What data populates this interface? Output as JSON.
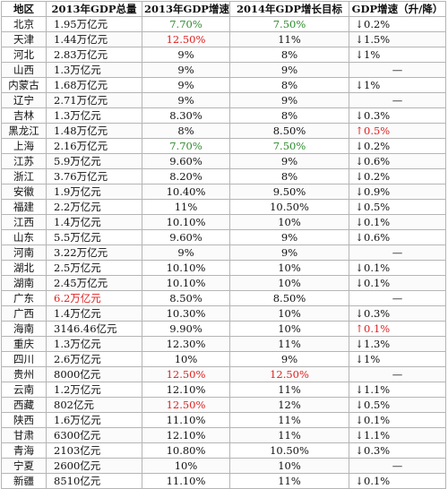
{
  "headers": [
    "地区",
    "2013年GDP总量",
    "2013年GDP增速",
    "2014年GDP增长目标",
    "GDP增速（升/降）"
  ],
  "colors": {
    "green": "#2e8b2e",
    "red": "#e02020",
    "default": "#111111",
    "grid": "#b5b5b5"
  },
  "rows": [
    {
      "region": "北京",
      "gdp": "1.95万亿元",
      "growth": "7.70%",
      "growth_color": "green",
      "target": "7.50%",
      "target_color": "green",
      "arrow": "↓",
      "arrow_color": "default",
      "change": "0.2%",
      "change_color": "default"
    },
    {
      "region": "天津",
      "gdp": "1.44万亿元",
      "growth": "12.50%",
      "growth_color": "red",
      "target": "11%",
      "target_color": "default",
      "arrow": "↓",
      "arrow_color": "default",
      "change": "1.5%",
      "change_color": "default"
    },
    {
      "region": "河北",
      "gdp": "2.83万亿元",
      "growth": "9%",
      "growth_color": "default",
      "target": "8%",
      "target_color": "default",
      "arrow": "↓",
      "arrow_color": "default",
      "change": "1%",
      "change_color": "default"
    },
    {
      "region": "山西",
      "gdp": "1.3万亿元",
      "growth": "9%",
      "growth_color": "default",
      "target": "9%",
      "target_color": "default",
      "arrow": "",
      "arrow_color": "default",
      "change": "—",
      "change_color": "default"
    },
    {
      "region": "内蒙古",
      "gdp": "1.68万亿元",
      "growth": "9%",
      "growth_color": "default",
      "target": "8%",
      "target_color": "default",
      "arrow": "↓",
      "arrow_color": "default",
      "change": "1%",
      "change_color": "default"
    },
    {
      "region": "辽宁",
      "gdp": "2.71万亿元",
      "growth": "9%",
      "growth_color": "default",
      "target": "9%",
      "target_color": "default",
      "arrow": "",
      "arrow_color": "default",
      "change": "—",
      "change_color": "default"
    },
    {
      "region": "吉林",
      "gdp": "1.3万亿元",
      "growth": "8.30%",
      "growth_color": "default",
      "target": "8%",
      "target_color": "default",
      "arrow": "↓",
      "arrow_color": "default",
      "change": "0.3%",
      "change_color": "default"
    },
    {
      "region": "黑龙江",
      "gdp": "1.48万亿元",
      "growth": "8%",
      "growth_color": "default",
      "target": "8.50%",
      "target_color": "default",
      "arrow": "↑",
      "arrow_color": "red",
      "change": "0.5%",
      "change_color": "red"
    },
    {
      "region": "上海",
      "gdp": "2.16万亿元",
      "growth": "7.70%",
      "growth_color": "green",
      "target": "7.50%",
      "target_color": "green",
      "arrow": "↓",
      "arrow_color": "default",
      "change": "0.2%",
      "change_color": "default"
    },
    {
      "region": "江苏",
      "gdp": "5.9万亿元",
      "growth": "9.60%",
      "growth_color": "default",
      "target": "9%",
      "target_color": "default",
      "arrow": "↓",
      "arrow_color": "default",
      "change": "0.6%",
      "change_color": "default"
    },
    {
      "region": "浙江",
      "gdp": "3.76万亿元",
      "growth": "8.20%",
      "growth_color": "default",
      "target": "8%",
      "target_color": "default",
      "arrow": "↓",
      "arrow_color": "default",
      "change": "0.2%",
      "change_color": "default"
    },
    {
      "region": "安徽",
      "gdp": "1.9万亿元",
      "growth": "10.40%",
      "growth_color": "default",
      "target": "9.50%",
      "target_color": "default",
      "arrow": "↓",
      "arrow_color": "default",
      "change": "0.9%",
      "change_color": "default"
    },
    {
      "region": "福建",
      "gdp": "2.2万亿元",
      "growth": "11%",
      "growth_color": "default",
      "target": "10.50%",
      "target_color": "default",
      "arrow": "↓",
      "arrow_color": "default",
      "change": "0.5%",
      "change_color": "default"
    },
    {
      "region": "江西",
      "gdp": "1.4万亿元",
      "growth": "10.10%",
      "growth_color": "default",
      "target": "10%",
      "target_color": "default",
      "arrow": "↓",
      "arrow_color": "default",
      "change": "0.1%",
      "change_color": "default"
    },
    {
      "region": "山东",
      "gdp": "5.5万亿元",
      "growth": "9.60%",
      "growth_color": "default",
      "target": "9%",
      "target_color": "default",
      "arrow": "↓",
      "arrow_color": "default",
      "change": "0.6%",
      "change_color": "default"
    },
    {
      "region": "河南",
      "gdp": "3.22万亿元",
      "growth": "9%",
      "growth_color": "default",
      "target": "9%",
      "target_color": "default",
      "arrow": "",
      "arrow_color": "default",
      "change": "—",
      "change_color": "default"
    },
    {
      "region": "湖北",
      "gdp": "2.5万亿元",
      "growth": "10.10%",
      "growth_color": "default",
      "target": "10%",
      "target_color": "default",
      "arrow": "↓",
      "arrow_color": "default",
      "change": "0.1%",
      "change_color": "default"
    },
    {
      "region": "湖南",
      "gdp": "2.45万亿元",
      "growth": "10.10%",
      "growth_color": "default",
      "target": "10%",
      "target_color": "default",
      "arrow": "↓",
      "arrow_color": "default",
      "change": "0.1%",
      "change_color": "default"
    },
    {
      "region": "广东",
      "gdp": "6.2万亿元",
      "gdp_color": "red",
      "growth": "8.50%",
      "growth_color": "default",
      "target": "8.50%",
      "target_color": "default",
      "arrow": "",
      "arrow_color": "default",
      "change": "—",
      "change_color": "default"
    },
    {
      "region": "广西",
      "gdp": "1.4万亿元",
      "growth": "10.30%",
      "growth_color": "default",
      "target": "10%",
      "target_color": "default",
      "arrow": "↓",
      "arrow_color": "default",
      "change": "0.3%",
      "change_color": "default"
    },
    {
      "region": "海南",
      "gdp": "3146.46亿元",
      "growth": "9.90%",
      "growth_color": "default",
      "target": "10%",
      "target_color": "default",
      "arrow": "↑",
      "arrow_color": "red",
      "change": "0.1%",
      "change_color": "red"
    },
    {
      "region": "重庆",
      "gdp": "1.3万亿元",
      "growth": "12.30%",
      "growth_color": "default",
      "target": "11%",
      "target_color": "default",
      "arrow": "↓",
      "arrow_color": "default",
      "change": "1.3%",
      "change_color": "default"
    },
    {
      "region": "四川",
      "gdp": "2.6万亿元",
      "growth": "10%",
      "growth_color": "default",
      "target": "9%",
      "target_color": "default",
      "arrow": "↓",
      "arrow_color": "default",
      "change": "1%",
      "change_color": "default"
    },
    {
      "region": "贵州",
      "gdp": "8000亿元",
      "growth": "12.50%",
      "growth_color": "red",
      "target": "12.50%",
      "target_color": "red",
      "arrow": "",
      "arrow_color": "default",
      "change": "—",
      "change_color": "default"
    },
    {
      "region": "云南",
      "gdp": "1.2万亿元",
      "growth": "12.10%",
      "growth_color": "default",
      "target": "11%",
      "target_color": "default",
      "arrow": "↓",
      "arrow_color": "default",
      "change": "1.1%",
      "change_color": "default"
    },
    {
      "region": "西藏",
      "gdp": "802亿元",
      "growth": "12.50%",
      "growth_color": "red",
      "target": "12%",
      "target_color": "default",
      "arrow": "↓",
      "arrow_color": "default",
      "change": "0.5%",
      "change_color": "default"
    },
    {
      "region": "陕西",
      "gdp": "1.6万亿元",
      "growth": "11.10%",
      "growth_color": "default",
      "target": "11%",
      "target_color": "default",
      "arrow": "↓",
      "arrow_color": "default",
      "change": "0.1%",
      "change_color": "default"
    },
    {
      "region": "甘肃",
      "gdp": "6300亿元",
      "growth": "12.10%",
      "growth_color": "default",
      "target": "11%",
      "target_color": "default",
      "arrow": "↓",
      "arrow_color": "default",
      "change": "1.1%",
      "change_color": "default"
    },
    {
      "region": "青海",
      "gdp": "2103亿元",
      "growth": "10.80%",
      "growth_color": "default",
      "target": "10.50%",
      "target_color": "default",
      "arrow": "↓",
      "arrow_color": "default",
      "change": "0.3%",
      "change_color": "default"
    },
    {
      "region": "宁夏",
      "gdp": "2600亿元",
      "growth": "10%",
      "growth_color": "default",
      "target": "10%",
      "target_color": "default",
      "arrow": "",
      "arrow_color": "default",
      "change": "—",
      "change_color": "default"
    },
    {
      "region": "新疆",
      "gdp": "8510亿元",
      "growth": "11.10%",
      "growth_color": "default",
      "target": "11%",
      "target_color": "default",
      "arrow": "↓",
      "arrow_color": "default",
      "change": "0.1%",
      "change_color": "default"
    }
  ]
}
